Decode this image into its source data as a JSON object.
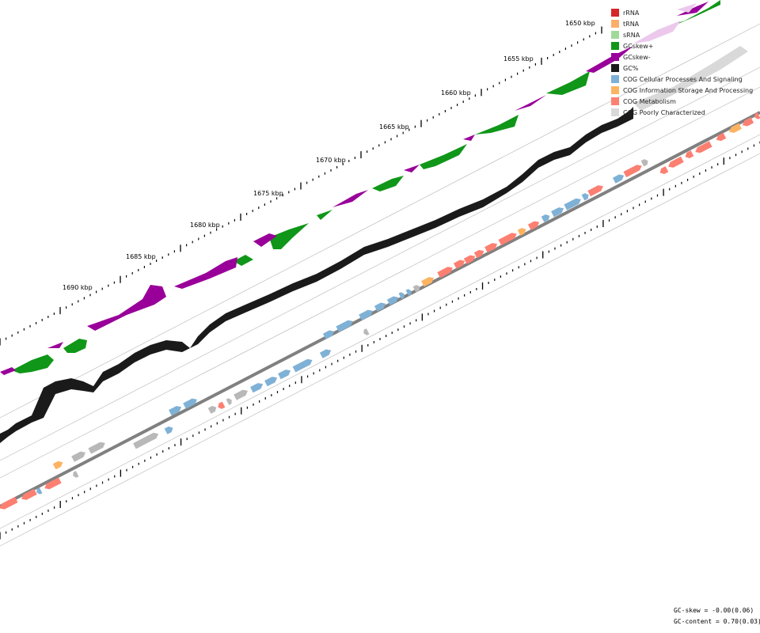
{
  "ticks": [
    "1650 kbp",
    "1655 kbp",
    "1660 kbp",
    "1665 kbp",
    "1670 kbp",
    "1675 kbp",
    "1680 kbp",
    "1685 kbp",
    "1690 kbp"
  ],
  "legend": [
    {
      "label": "rRNA",
      "color": "#d62728"
    },
    {
      "label": "tRNA",
      "color": "#fdae6b"
    },
    {
      "label": "sRNA",
      "color": "#a1d99b"
    },
    {
      "label": "GCskew+",
      "color": "#109618"
    },
    {
      "label": "GCskew-",
      "color": "#990099"
    },
    {
      "label": "GC%",
      "color": "#1a1a1a"
    },
    {
      "label": "COG Cellular Processes And Signaling",
      "color": "#7fb1d6"
    },
    {
      "label": "COG Information Storage And Processing",
      "color": "#fdb462"
    },
    {
      "label": "COG Metabolism",
      "color": "#fb8072"
    },
    {
      "label": "COG Poorly Characterized",
      "color": "#d9d9d9"
    }
  ],
  "footer": {
    "gc_skew": "GC-skew = -0.00(0.06)",
    "gc_content": "GC-content = 0.70(0.03)"
  }
}
